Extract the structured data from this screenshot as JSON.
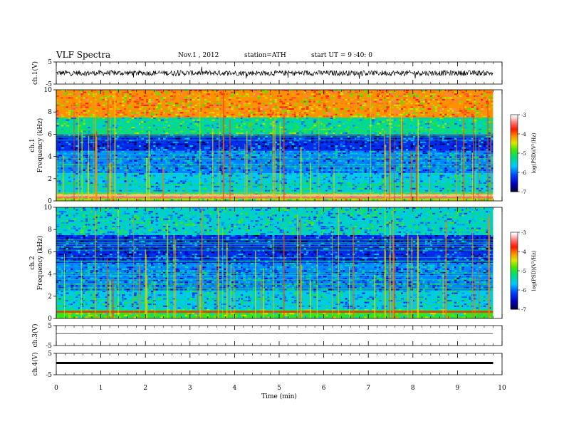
{
  "header": {
    "title": "VLF Spectra",
    "date": "Nov.1 , 2012",
    "station": "station=ATH",
    "start": "start UT = 9 :40: 0"
  },
  "chart_data": [
    {
      "type": "line",
      "panel": "ch1-waveform",
      "ylabel": "ch.1(V)",
      "ylim": [
        -5,
        5
      ],
      "yticks": [
        "5",
        "-5"
      ],
      "xlim": [
        0,
        10
      ],
      "series": [
        {
          "baseline": 0,
          "noise_amplitude": 1.2,
          "x_end": 9.8
        }
      ]
    },
    {
      "type": "heatmap",
      "panel": "ch1-spectrogram",
      "ylabel": "ch.1\nFrequency (kHz)",
      "ylabel_line1": "ch.1",
      "ylabel_line2": "Frequency (kHz)",
      "ylim": [
        0,
        10
      ],
      "yticks": [
        "0",
        "2",
        "4",
        "6",
        "8",
        "10"
      ],
      "xlim": [
        0,
        10
      ],
      "x_end": 9.8,
      "colorbar": {
        "label": "log(PSD)(V²/Hz)",
        "range": [
          -7,
          -3
        ],
        "ticks": [
          "-3",
          "-4",
          "-5",
          "-6",
          "-7"
        ]
      },
      "bands": [
        {
          "f0": 0,
          "f1": 0.8,
          "level": -4.6
        },
        {
          "f0": 0.8,
          "f1": 2.5,
          "level": -5.6
        },
        {
          "f0": 2.5,
          "f1": 4.5,
          "level": -5.9
        },
        {
          "f0": 4.5,
          "f1": 6.0,
          "level": -6.3
        },
        {
          "f0": 6.0,
          "f1": 7.5,
          "level": -5.3
        },
        {
          "f0": 7.5,
          "f1": 10,
          "level": -4.1
        }
      ],
      "lines": [
        {
          "f": 0.5,
          "level": -3.2
        },
        {
          "f": 0.3,
          "level": -3.4
        }
      ]
    },
    {
      "type": "heatmap",
      "panel": "ch2-spectrogram",
      "ylabel": "ch.2\nFrequency (kHz)",
      "ylabel_line1": "ch.2",
      "ylabel_line2": "Frequency (kHz)",
      "ylim": [
        0,
        10
      ],
      "yticks": [
        "0",
        "2",
        "4",
        "6",
        "8",
        "10"
      ],
      "xlim": [
        0,
        10
      ],
      "x_end": 9.8,
      "colorbar": {
        "label": "log(PSD)(V²/Hz)",
        "range": [
          -7,
          -3
        ],
        "ticks": [
          "-3",
          "-4",
          "-5",
          "-6",
          "-7"
        ]
      },
      "bands": [
        {
          "f0": 0,
          "f1": 0.8,
          "level": -4.9
        },
        {
          "f0": 0.8,
          "f1": 2.5,
          "level": -5.6
        },
        {
          "f0": 2.5,
          "f1": 5.0,
          "level": -5.9
        },
        {
          "f0": 5.0,
          "f1": 7.5,
          "level": -6.3
        },
        {
          "f0": 7.5,
          "f1": 10,
          "level": -5.5
        }
      ],
      "lines": [
        {
          "f": 0.6,
          "level": -3.8
        }
      ]
    },
    {
      "type": "line",
      "panel": "ch3-waveform",
      "ylabel": "ch.3(V)",
      "ylim": [
        -5,
        5
      ],
      "yticks": [
        "5",
        "-5"
      ],
      "xlim": [
        0,
        10
      ],
      "series": [
        {
          "baseline": 1.0,
          "noise_amplitude": 0.02,
          "x_end": 9.8
        }
      ]
    },
    {
      "type": "line",
      "panel": "ch4-waveform",
      "ylabel": "ch.4(V)",
      "ylim": [
        -5,
        5
      ],
      "yticks": [
        "5",
        "-5"
      ],
      "xlim": [
        0,
        10
      ],
      "series": [
        {
          "baseline": 0.5,
          "noise_amplitude": 0.15,
          "x_end": 9.8
        }
      ]
    }
  ],
  "x_axis": {
    "label": "Time (min)",
    "ticks": [
      "0",
      "1",
      "2",
      "3",
      "4",
      "5",
      "6",
      "7",
      "8",
      "9",
      "10"
    ]
  }
}
